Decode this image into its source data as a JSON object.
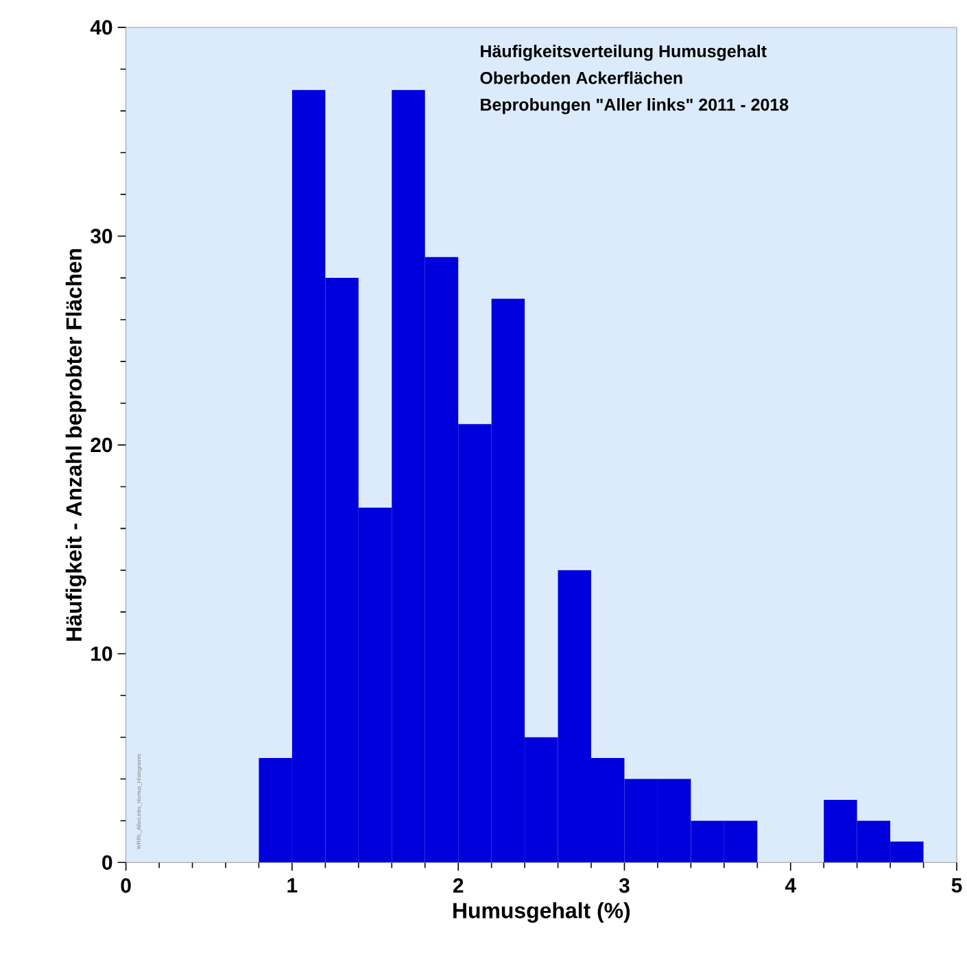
{
  "chart_data": {
    "type": "histogram",
    "xlabel": "Humusgehalt (%)",
    "ylabel": "Häufigkeit - Anzahl beprobter Flächen",
    "annotations": [
      "Häufigkeitsverteilung Humusgehalt",
      "Oberboden Ackerflächen",
      "Beprobungen \"Aller links\" 2011 - 2018",
      "WRRL_AllerLinks_Humus_Histogramm"
    ],
    "bins": [
      0.8,
      1.0,
      1.2,
      1.4,
      1.6,
      1.8,
      2.0,
      2.2,
      2.4,
      2.6,
      2.8,
      3.0,
      3.2,
      3.4,
      3.6,
      3.8,
      4.0,
      4.2,
      4.4,
      4.6,
      4.8
    ],
    "values": [
      5,
      37,
      28,
      17,
      37,
      29,
      21,
      27,
      6,
      14,
      5,
      4,
      4,
      2,
      2,
      0,
      0,
      3,
      2,
      1
    ],
    "color": "#0000dd",
    "xlim": [
      0,
      5
    ],
    "ylim": [
      0,
      40
    ],
    "xticks": [
      0,
      1,
      2,
      3,
      4,
      5
    ],
    "yticks": [
      0,
      10,
      20,
      30,
      40
    ],
    "grid": false
  }
}
